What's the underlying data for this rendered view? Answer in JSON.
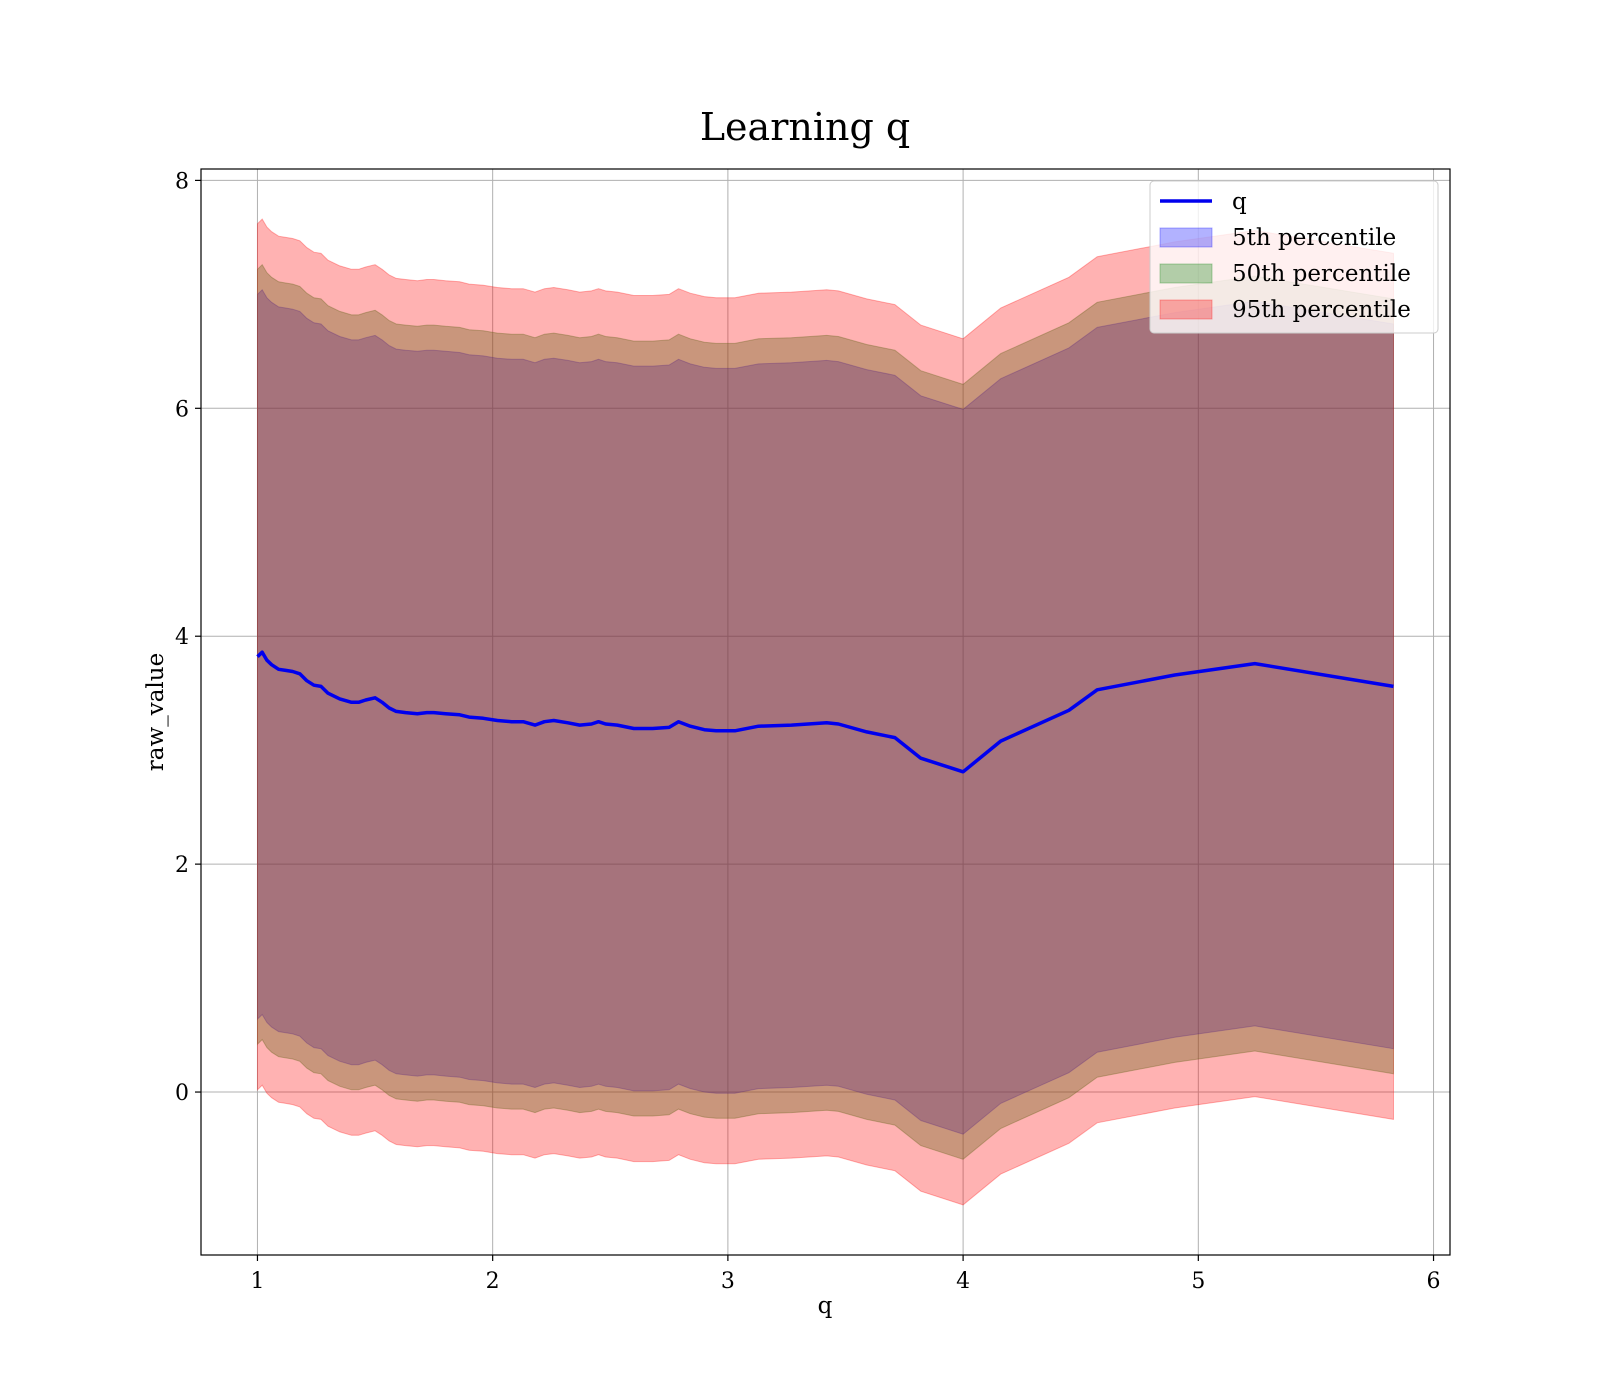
{
  "chart_data": {
    "type": "area",
    "title": "Learning q",
    "xlabel": "q",
    "ylabel": "raw_value",
    "xlim": [
      0.76,
      6.07
    ],
    "ylim": [
      -1.43,
      8.1
    ],
    "x_ticks": [
      "1",
      "2",
      "3",
      "4",
      "5",
      "6"
    ],
    "y_ticks": [
      "0",
      "2",
      "4",
      "6",
      "8"
    ],
    "grid": true,
    "legend_position": "top-right",
    "legend": [
      "q",
      "5th percentile",
      "50th percentile",
      "95th percentile"
    ],
    "colors": {
      "line": "#0000ee",
      "band_5th": "#0000ff",
      "band_50th": "#228b22",
      "band_95th": "#ff0000",
      "grid": "#b0b0b0"
    },
    "x": [
      1.0,
      1.02,
      1.04,
      1.06,
      1.09,
      1.12,
      1.15,
      1.18,
      1.21,
      1.24,
      1.27,
      1.3,
      1.35,
      1.4,
      1.43,
      1.46,
      1.5,
      1.53,
      1.56,
      1.59,
      1.63,
      1.68,
      1.72,
      1.75,
      1.8,
      1.86,
      1.9,
      1.96,
      2.02,
      2.08,
      2.13,
      2.18,
      2.22,
      2.26,
      2.32,
      2.37,
      2.42,
      2.45,
      2.48,
      2.53,
      2.6,
      2.68,
      2.75,
      2.79,
      2.84,
      2.9,
      2.95,
      3.03,
      3.13,
      3.27,
      3.42,
      3.47,
      3.59,
      3.71,
      3.82,
      4.0,
      4.16,
      4.45,
      4.57,
      4.9,
      5.24,
      5.83
    ],
    "series": [
      {
        "name": "q",
        "values": [
          3.82,
          3.86,
          3.79,
          3.75,
          3.71,
          3.7,
          3.69,
          3.67,
          3.61,
          3.57,
          3.56,
          3.5,
          3.45,
          3.42,
          3.42,
          3.44,
          3.46,
          3.42,
          3.37,
          3.34,
          3.33,
          3.32,
          3.33,
          3.33,
          3.32,
          3.31,
          3.29,
          3.28,
          3.26,
          3.25,
          3.25,
          3.22,
          3.25,
          3.26,
          3.24,
          3.22,
          3.23,
          3.25,
          3.23,
          3.22,
          3.19,
          3.19,
          3.2,
          3.25,
          3.21,
          3.18,
          3.17,
          3.17,
          3.21,
          3.22,
          3.24,
          3.23,
          3.16,
          3.11,
          2.93,
          2.81,
          3.08,
          3.35,
          3.53,
          3.66,
          3.76,
          3.56
        ]
      },
      {
        "name": "5th percentile",
        "lower": [
          0.64,
          0.68,
          0.61,
          0.57,
          0.53,
          0.52,
          0.51,
          0.49,
          0.43,
          0.39,
          0.38,
          0.32,
          0.27,
          0.24,
          0.24,
          0.26,
          0.28,
          0.24,
          0.19,
          0.16,
          0.15,
          0.14,
          0.15,
          0.15,
          0.14,
          0.13,
          0.11,
          0.1,
          0.08,
          0.07,
          0.07,
          0.04,
          0.07,
          0.08,
          0.06,
          0.04,
          0.05,
          0.07,
          0.05,
          0.04,
          0.01,
          0.01,
          0.02,
          0.07,
          0.03,
          0.0,
          -0.01,
          -0.01,
          0.03,
          0.04,
          0.06,
          0.05,
          -0.02,
          -0.07,
          -0.25,
          -0.37,
          -0.1,
          0.17,
          0.35,
          0.48,
          0.58,
          0.38
        ],
        "upper": [
          7.0,
          7.04,
          6.97,
          6.93,
          6.89,
          6.88,
          6.87,
          6.85,
          6.79,
          6.75,
          6.74,
          6.68,
          6.63,
          6.6,
          6.6,
          6.62,
          6.64,
          6.6,
          6.55,
          6.52,
          6.51,
          6.5,
          6.51,
          6.51,
          6.5,
          6.49,
          6.47,
          6.46,
          6.44,
          6.43,
          6.43,
          6.4,
          6.43,
          6.44,
          6.42,
          6.4,
          6.41,
          6.43,
          6.41,
          6.4,
          6.37,
          6.37,
          6.38,
          6.43,
          6.39,
          6.36,
          6.35,
          6.35,
          6.39,
          6.4,
          6.42,
          6.41,
          6.34,
          6.29,
          6.11,
          5.99,
          6.26,
          6.53,
          6.71,
          6.84,
          6.94,
          6.74
        ]
      },
      {
        "name": "50th percentile",
        "lower": [
          0.42,
          0.46,
          0.39,
          0.35,
          0.31,
          0.3,
          0.29,
          0.27,
          0.21,
          0.17,
          0.16,
          0.1,
          0.05,
          0.02,
          0.02,
          0.04,
          0.06,
          0.02,
          -0.03,
          -0.06,
          -0.07,
          -0.08,
          -0.07,
          -0.07,
          -0.08,
          -0.09,
          -0.11,
          -0.12,
          -0.14,
          -0.15,
          -0.15,
          -0.18,
          -0.15,
          -0.14,
          -0.16,
          -0.18,
          -0.17,
          -0.15,
          -0.17,
          -0.18,
          -0.21,
          -0.21,
          -0.2,
          -0.15,
          -0.19,
          -0.22,
          -0.23,
          -0.23,
          -0.19,
          -0.18,
          -0.16,
          -0.17,
          -0.24,
          -0.29,
          -0.47,
          -0.59,
          -0.32,
          -0.05,
          0.13,
          0.26,
          0.36,
          0.16
        ],
        "upper": [
          7.22,
          7.26,
          7.19,
          7.15,
          7.11,
          7.1,
          7.09,
          7.07,
          7.01,
          6.97,
          6.96,
          6.9,
          6.85,
          6.82,
          6.82,
          6.84,
          6.86,
          6.82,
          6.77,
          6.74,
          6.73,
          6.72,
          6.73,
          6.73,
          6.72,
          6.71,
          6.69,
          6.68,
          6.66,
          6.65,
          6.65,
          6.62,
          6.65,
          6.66,
          6.64,
          6.62,
          6.63,
          6.65,
          6.63,
          6.62,
          6.59,
          6.59,
          6.6,
          6.65,
          6.61,
          6.58,
          6.57,
          6.57,
          6.61,
          6.62,
          6.64,
          6.63,
          6.56,
          6.51,
          6.33,
          6.21,
          6.48,
          6.75,
          6.93,
          7.06,
          7.16,
          6.96
        ]
      },
      {
        "name": "95th percentile",
        "lower": [
          0.02,
          0.06,
          -0.01,
          -0.05,
          -0.09,
          -0.1,
          -0.11,
          -0.13,
          -0.19,
          -0.23,
          -0.24,
          -0.3,
          -0.35,
          -0.38,
          -0.38,
          -0.36,
          -0.34,
          -0.38,
          -0.43,
          -0.46,
          -0.47,
          -0.48,
          -0.47,
          -0.47,
          -0.48,
          -0.49,
          -0.51,
          -0.52,
          -0.54,
          -0.55,
          -0.55,
          -0.58,
          -0.55,
          -0.54,
          -0.56,
          -0.58,
          -0.57,
          -0.55,
          -0.57,
          -0.58,
          -0.61,
          -0.61,
          -0.6,
          -0.55,
          -0.59,
          -0.62,
          -0.63,
          -0.63,
          -0.59,
          -0.58,
          -0.56,
          -0.57,
          -0.64,
          -0.69,
          -0.87,
          -0.99,
          -0.72,
          -0.45,
          -0.27,
          -0.14,
          -0.04,
          -0.24
        ],
        "upper": [
          7.62,
          7.66,
          7.59,
          7.55,
          7.51,
          7.5,
          7.49,
          7.47,
          7.41,
          7.37,
          7.36,
          7.3,
          7.25,
          7.22,
          7.22,
          7.24,
          7.26,
          7.22,
          7.17,
          7.14,
          7.13,
          7.12,
          7.13,
          7.13,
          7.12,
          7.11,
          7.09,
          7.08,
          7.06,
          7.05,
          7.05,
          7.02,
          7.05,
          7.06,
          7.04,
          7.02,
          7.03,
          7.05,
          7.03,
          7.02,
          6.99,
          6.99,
          7.0,
          7.05,
          7.01,
          6.98,
          6.97,
          6.97,
          7.01,
          7.02,
          7.04,
          7.03,
          6.96,
          6.91,
          6.73,
          6.61,
          6.88,
          7.15,
          7.33,
          7.46,
          7.56,
          7.36
        ]
      }
    ]
  }
}
